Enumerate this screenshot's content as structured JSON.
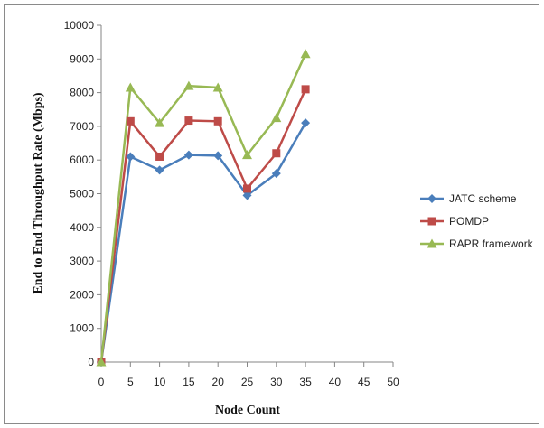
{
  "chart_data": {
    "type": "line",
    "title": "",
    "xlabel": "Node Count",
    "ylabel": "End to End Throughput Rate (Mbps)",
    "x_ticks": [
      0,
      5,
      10,
      15,
      20,
      25,
      30,
      35,
      40,
      45,
      50
    ],
    "y_ticks": [
      0,
      1000,
      2000,
      3000,
      4000,
      5000,
      6000,
      7000,
      8000,
      9000,
      10000
    ],
    "xlim": [
      0,
      50
    ],
    "ylim": [
      0,
      10000
    ],
    "grid": false,
    "legend_position": "right",
    "x": [
      0,
      5,
      10,
      15,
      20,
      25,
      30,
      35
    ],
    "series": [
      {
        "name": "JATC scheme",
        "color": "#4a7ebb",
        "marker": "diamond",
        "values": [
          0,
          6100,
          5700,
          6150,
          6130,
          4950,
          5600,
          7100
        ]
      },
      {
        "name": "POMDP",
        "color": "#be4b48",
        "marker": "square",
        "values": [
          0,
          7150,
          6100,
          7170,
          7150,
          5150,
          6200,
          8100
        ]
      },
      {
        "name": "RAPR framework",
        "color": "#98b954",
        "marker": "triangle",
        "values": [
          0,
          8150,
          7100,
          8200,
          8150,
          6150,
          7250,
          9150
        ]
      }
    ]
  }
}
